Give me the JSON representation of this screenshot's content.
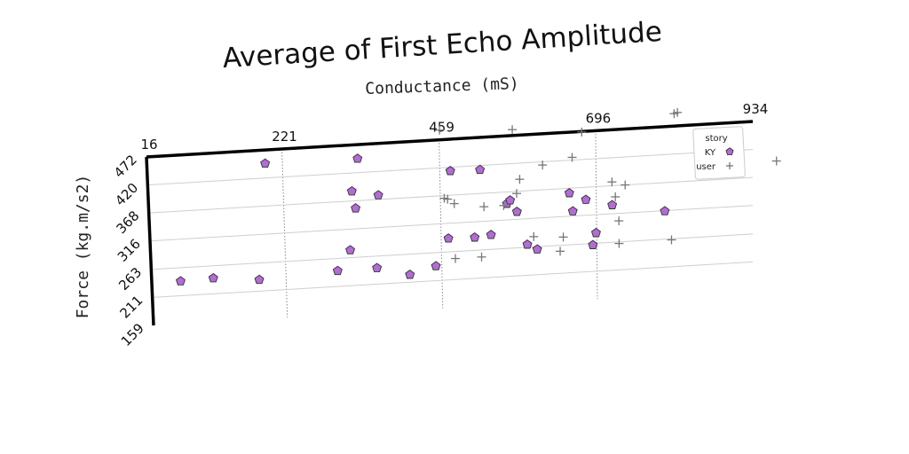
{
  "chart_data": {
    "type": "scatter",
    "title": "Average of First Echo Amplitude",
    "xlabel": "Conductance (mS)",
    "ylabel": "Force (kg.m/s2)",
    "xlim": [
      16,
      934
    ],
    "ylim": [
      159,
      472
    ],
    "x_ticks": [
      "16",
      "221",
      "459",
      "696",
      "934"
    ],
    "y_ticks": [
      "472",
      "420",
      "368",
      "316",
      "263",
      "211",
      "159"
    ],
    "x_grid": true,
    "y_grid": true,
    "legend": {
      "title": "story",
      "position": "top-right"
    },
    "series": [
      {
        "name": "KY",
        "marker": "pentagon",
        "color": "#b36bd6",
        "points": [
          [
            60,
            238
          ],
          [
            110,
            240
          ],
          [
            180,
            232
          ],
          [
            195,
            447
          ],
          [
            300,
            240
          ],
          [
            320,
            277
          ],
          [
            325,
            386
          ],
          [
            330,
            354
          ],
          [
            335,
            446
          ],
          [
            360,
            241
          ],
          [
            365,
            376
          ],
          [
            410,
            225
          ],
          [
            450,
            238
          ],
          [
            470,
            288
          ],
          [
            475,
            413
          ],
          [
            510,
            287
          ],
          [
            520,
            412
          ],
          [
            535,
            290
          ],
          [
            560,
            346
          ],
          [
            565,
            352
          ],
          [
            575,
            330
          ],
          [
            590,
            268
          ],
          [
            605,
            258
          ],
          [
            655,
            359
          ],
          [
            660,
            325
          ],
          [
            680,
            345
          ],
          [
            690,
            260
          ],
          [
            695,
            282
          ],
          [
            720,
            332
          ],
          [
            800,
            315
          ]
        ]
      },
      {
        "name": "user",
        "marker": "plus",
        "color": "#777777",
        "points": [
          [
            460,
            490
          ],
          [
            465,
            363
          ],
          [
            470,
            361
          ],
          [
            480,
            352
          ],
          [
            480,
            250
          ],
          [
            520,
            250
          ],
          [
            525,
            343
          ],
          [
            555,
            343
          ],
          [
            570,
            483
          ],
          [
            575,
            364
          ],
          [
            580,
            390
          ],
          [
            600,
            282
          ],
          [
            615,
            414
          ],
          [
            640,
            252
          ],
          [
            645,
            278
          ],
          [
            660,
            425
          ],
          [
            675,
            471
          ],
          [
            720,
            375
          ],
          [
            725,
            347
          ],
          [
            730,
            302
          ],
          [
            730,
            260
          ],
          [
            740,
            368
          ],
          [
            810,
            261
          ],
          [
            815,
            495
          ],
          [
            820,
            497
          ],
          [
            875,
            400
          ],
          [
            970,
            396
          ]
        ]
      }
    ]
  }
}
